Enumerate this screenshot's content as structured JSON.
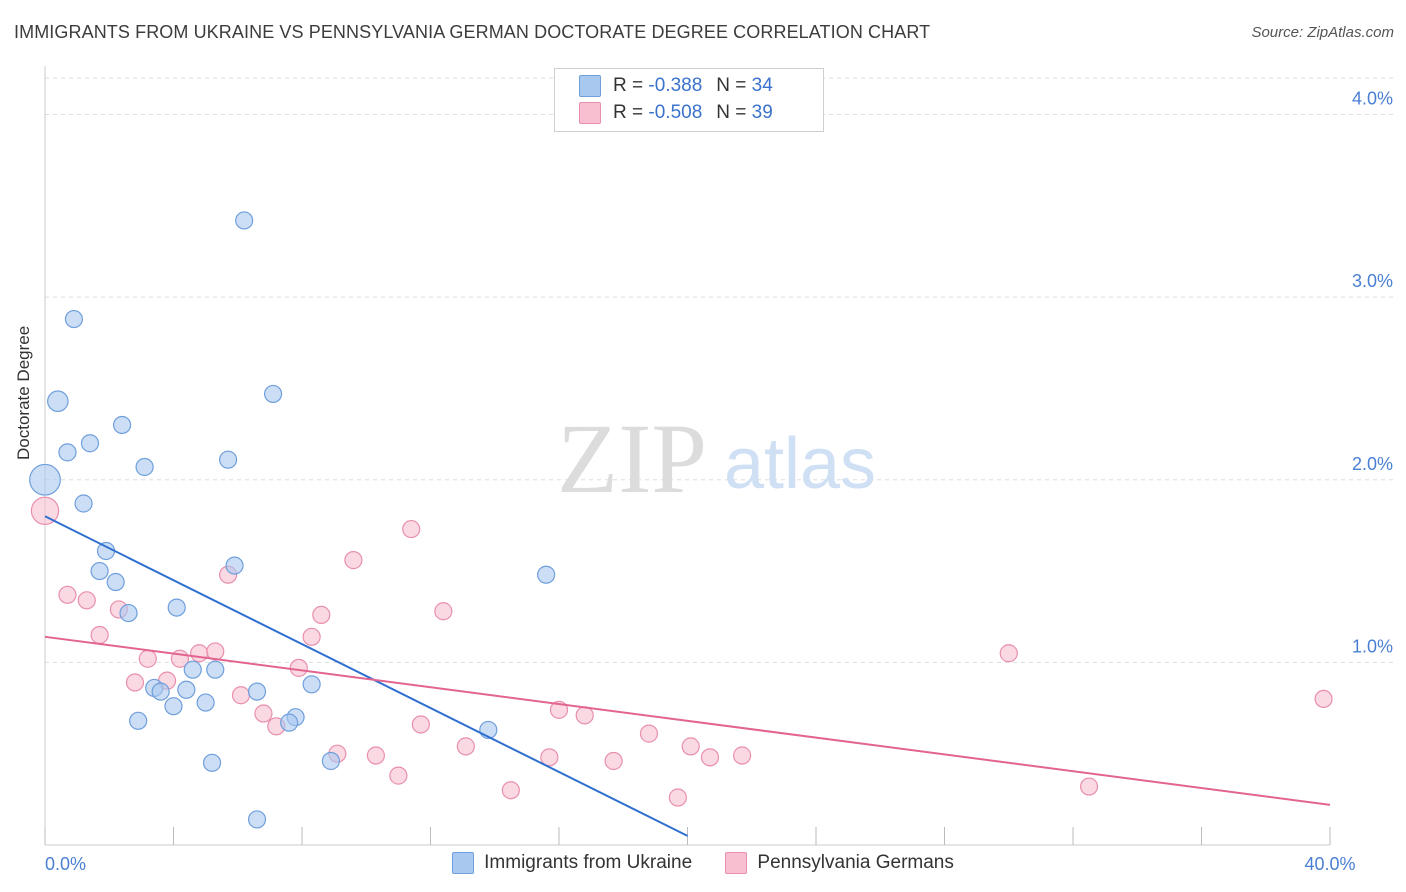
{
  "title": "IMMIGRANTS FROM UKRAINE VS PENNSYLVANIA GERMAN DOCTORATE DEGREE CORRELATION CHART",
  "source": "Source: ZipAtlas.com",
  "watermark": {
    "zip": "ZIP",
    "atlas": "atlas"
  },
  "legend": {
    "r_label": "R =",
    "n_label": "N =",
    "series": [
      {
        "r": "-0.388",
        "n": "34"
      },
      {
        "r": "-0.508",
        "n": "39"
      }
    ]
  },
  "colors": {
    "blue_fill": "#a9c8f0",
    "blue_stroke": "#6f9fdc",
    "blue_line": "#2f6fcf",
    "pink_fill": "#f7bfd0",
    "pink_stroke": "#e98fae",
    "pink_line": "#e2648f",
    "grid": "#dddddd",
    "tick_text": "#4a7fd4"
  },
  "chart_data": {
    "type": "scatter",
    "title": "IMMIGRANTS FROM UKRAINE VS PENNSYLVANIA GERMAN DOCTORATE DEGREE CORRELATION CHART",
    "xlabel": "",
    "ylabel": "Doctorate Degree",
    "xlim": [
      0,
      40
    ],
    "ylim": [
      0,
      4.2
    ],
    "x_tick_labels": [
      {
        "value": 0,
        "label": "0.0%"
      },
      {
        "value": 40,
        "label": "40.0%"
      }
    ],
    "y_ticks": [
      {
        "value": 1.0,
        "label": "1.0%"
      },
      {
        "value": 2.0,
        "label": "2.0%"
      },
      {
        "value": 3.0,
        "label": "3.0%"
      },
      {
        "value": 4.0,
        "label": "4.0%"
      }
    ],
    "series": [
      {
        "name": "Immigrants from Ukraine",
        "color": "blue",
        "points": [
          {
            "x": 0.0,
            "y": 2.0,
            "s": 1.8
          },
          {
            "x": 0.4,
            "y": 2.43,
            "s": 1.2
          },
          {
            "x": 0.9,
            "y": 2.88
          },
          {
            "x": 0.7,
            "y": 2.15
          },
          {
            "x": 1.4,
            "y": 2.2
          },
          {
            "x": 1.2,
            "y": 1.87
          },
          {
            "x": 2.4,
            "y": 2.3
          },
          {
            "x": 3.1,
            "y": 2.07
          },
          {
            "x": 6.2,
            "y": 3.42
          },
          {
            "x": 7.1,
            "y": 2.47
          },
          {
            "x": 5.7,
            "y": 2.11
          },
          {
            "x": 1.9,
            "y": 1.61
          },
          {
            "x": 1.7,
            "y": 1.5
          },
          {
            "x": 2.2,
            "y": 1.44
          },
          {
            "x": 2.6,
            "y": 1.27
          },
          {
            "x": 4.1,
            "y": 1.3
          },
          {
            "x": 5.9,
            "y": 1.53
          },
          {
            "x": 15.6,
            "y": 1.48
          },
          {
            "x": 4.6,
            "y": 0.96
          },
          {
            "x": 5.3,
            "y": 0.96
          },
          {
            "x": 3.4,
            "y": 0.86
          },
          {
            "x": 3.6,
            "y": 0.84
          },
          {
            "x": 4.4,
            "y": 0.85
          },
          {
            "x": 6.6,
            "y": 0.84
          },
          {
            "x": 8.3,
            "y": 0.88
          },
          {
            "x": 5.0,
            "y": 0.78
          },
          {
            "x": 4.0,
            "y": 0.76
          },
          {
            "x": 2.9,
            "y": 0.68
          },
          {
            "x": 7.8,
            "y": 0.7
          },
          {
            "x": 7.6,
            "y": 0.67
          },
          {
            "x": 13.8,
            "y": 0.63
          },
          {
            "x": 5.2,
            "y": 0.45
          },
          {
            "x": 8.9,
            "y": 0.46
          },
          {
            "x": 6.6,
            "y": 0.14
          }
        ]
      },
      {
        "name": "Pennsylvania Germans",
        "color": "pink",
        "points": [
          {
            "x": 0.0,
            "y": 1.83,
            "s": 1.6
          },
          {
            "x": 0.7,
            "y": 1.37
          },
          {
            "x": 1.3,
            "y": 1.34
          },
          {
            "x": 1.7,
            "y": 1.15
          },
          {
            "x": 2.3,
            "y": 1.29
          },
          {
            "x": 3.2,
            "y": 1.02
          },
          {
            "x": 4.2,
            "y": 1.02
          },
          {
            "x": 4.8,
            "y": 1.05
          },
          {
            "x": 5.3,
            "y": 1.06
          },
          {
            "x": 2.8,
            "y": 0.89
          },
          {
            "x": 3.8,
            "y": 0.9
          },
          {
            "x": 5.7,
            "y": 1.48
          },
          {
            "x": 8.6,
            "y": 1.26
          },
          {
            "x": 8.3,
            "y": 1.14
          },
          {
            "x": 7.9,
            "y": 0.97
          },
          {
            "x": 9.6,
            "y": 1.56
          },
          {
            "x": 11.4,
            "y": 1.73
          },
          {
            "x": 12.4,
            "y": 1.28
          },
          {
            "x": 6.1,
            "y": 0.82
          },
          {
            "x": 6.8,
            "y": 0.72
          },
          {
            "x": 7.2,
            "y": 0.65
          },
          {
            "x": 11.7,
            "y": 0.66
          },
          {
            "x": 9.1,
            "y": 0.5
          },
          {
            "x": 10.3,
            "y": 0.49
          },
          {
            "x": 13.1,
            "y": 0.54
          },
          {
            "x": 15.7,
            "y": 0.48
          },
          {
            "x": 11.0,
            "y": 0.38
          },
          {
            "x": 14.5,
            "y": 0.3
          },
          {
            "x": 16.0,
            "y": 0.74
          },
          {
            "x": 16.8,
            "y": 0.71
          },
          {
            "x": 17.7,
            "y": 0.46
          },
          {
            "x": 18.8,
            "y": 0.61
          },
          {
            "x": 20.1,
            "y": 0.54
          },
          {
            "x": 20.7,
            "y": 0.48
          },
          {
            "x": 21.7,
            "y": 0.49
          },
          {
            "x": 19.7,
            "y": 0.26
          },
          {
            "x": 30.0,
            "y": 1.05
          },
          {
            "x": 32.5,
            "y": 0.32
          },
          {
            "x": 39.8,
            "y": 0.8
          }
        ]
      }
    ],
    "trendlines": [
      {
        "series": "Immigrants from Ukraine",
        "x1": 0.0,
        "y1": 1.8,
        "x2": 20.0,
        "y2": 0.05
      },
      {
        "series": "Pennsylvania Germans",
        "x1": 0.0,
        "y1": 1.14,
        "x2": 40.0,
        "y2": 0.22
      }
    ]
  }
}
